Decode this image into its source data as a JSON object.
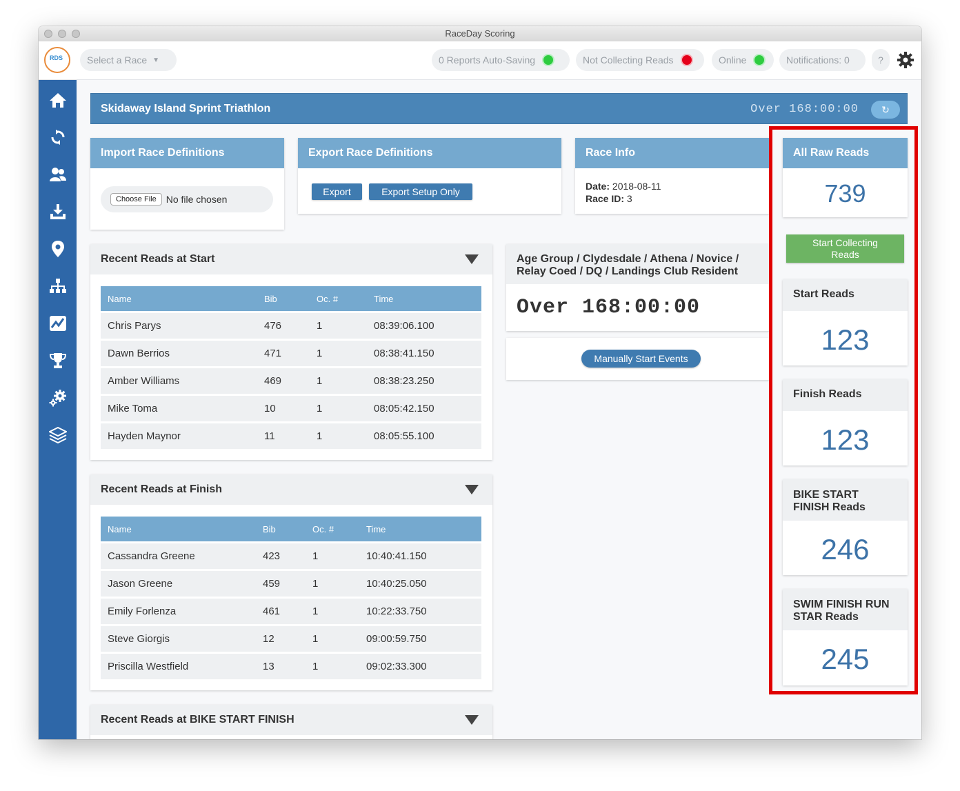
{
  "window": {
    "title": "RaceDay Scoring"
  },
  "topbar": {
    "race_select": "Select a Race",
    "auto_saving": "0 Reports Auto-Saving",
    "collecting": "Not Collecting Reads",
    "online": "Online",
    "notifications": "Notifications: 0",
    "help": "?",
    "colors": {
      "green": "#2ecc40",
      "red": "#e5001a"
    }
  },
  "sidebar": {
    "icons": [
      "home-icon",
      "sync-icon",
      "users-icon",
      "download-icon",
      "location-pin-icon",
      "hierarchy-icon",
      "chart-icon",
      "trophy-icon",
      "settings-cogs-icon",
      "layers-icon"
    ]
  },
  "banner": {
    "race_name": "Skidaway Island Sprint Triathlon",
    "clock": "Over 168:00:00",
    "refresh_icon": "↻"
  },
  "import_card": {
    "title": "Import Race Definitions",
    "choose_file": "Choose File",
    "no_file": "No file chosen"
  },
  "export_card": {
    "title": "Export Race Definitions",
    "export": "Export",
    "export_setup": "Export Setup Only"
  },
  "race_info": {
    "title": "Race Info",
    "date_label": "Date:",
    "date": "2018-08-11",
    "id_label": "Race ID:",
    "id": "3"
  },
  "start_reads_card": {
    "title": "Recent Reads at Start",
    "headers": [
      "Name",
      "Bib",
      "Oc. #",
      "Time"
    ],
    "rows": [
      [
        "Chris Parys",
        "476",
        "1",
        "08:39:06.100"
      ],
      [
        "Dawn Berrios",
        "471",
        "1",
        "08:38:41.150"
      ],
      [
        "Amber Williams",
        "469",
        "1",
        "08:38:23.250"
      ],
      [
        "Mike Toma",
        "10",
        "1",
        "08:05:42.150"
      ],
      [
        "Hayden Maynor",
        "11",
        "1",
        "08:05:55.100"
      ]
    ]
  },
  "finish_reads_card": {
    "title": "Recent Reads at Finish",
    "headers": [
      "Name",
      "Bib",
      "Oc. #",
      "Time"
    ],
    "rows": [
      [
        "Cassandra Greene",
        "423",
        "1",
        "10:40:41.150"
      ],
      [
        "Jason Greene",
        "459",
        "1",
        "10:40:25.050"
      ],
      [
        "Emily Forlenza",
        "461",
        "1",
        "10:22:33.750"
      ],
      [
        "Steve Giorgis",
        "12",
        "1",
        "09:00:59.750"
      ],
      [
        "Priscilla Westfield",
        "13",
        "1",
        "09:02:33.300"
      ]
    ]
  },
  "bike_reads_card": {
    "title": "Recent Reads at BIKE START FINISH"
  },
  "age_group_card": {
    "title": "Age Group / Clydesdale / Athena / Novice / Relay Coed / DQ / Landings Club Resident",
    "clock": "Over 168:00:00"
  },
  "manual_start": {
    "label": "Manually Start Events"
  },
  "right_panel": {
    "all_raw": {
      "title": "All Raw Reads",
      "count": "739"
    },
    "start_collecting": "Start Collecting Reads",
    "start_reads": {
      "title": "Start Reads",
      "count": "123"
    },
    "finish_reads": {
      "title": "Finish Reads",
      "count": "123"
    },
    "bike_reads": {
      "title": "BIKE START FINISH Reads",
      "count": "246"
    },
    "swim_reads": {
      "title": "SWIM FINISH RUN STAR Reads",
      "count": "245"
    },
    "highlight_color": "#e00000"
  }
}
